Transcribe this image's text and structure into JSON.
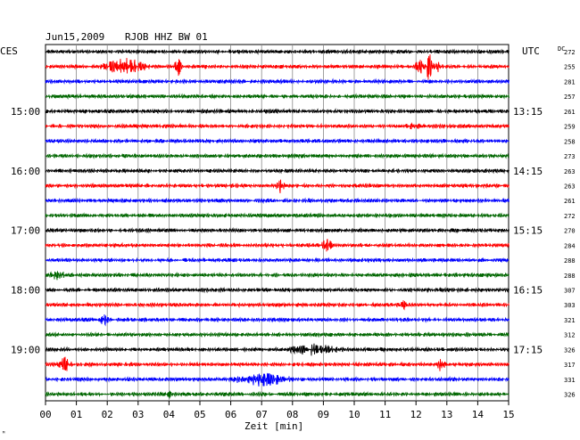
{
  "header": {
    "date": "Jun15,2009",
    "station": "RJOB HHZ BW 01",
    "left_tz": "CES",
    "right_tz": "UTC",
    "dc_label": "DC"
  },
  "footer": {
    "xlabel": "Zeit [min]",
    "corner_mark": "ᴹ"
  },
  "chart_data": {
    "type": "line",
    "title": "Jun15,2009   RJOB HHZ BW 01",
    "xlabel": "Zeit [min]",
    "xlim": [
      0,
      15
    ],
    "x_ticks": [
      "00",
      "01",
      "02",
      "03",
      "04",
      "05",
      "06",
      "07",
      "08",
      "09",
      "10",
      "11",
      "12",
      "13",
      "14",
      "15"
    ],
    "grid": true,
    "trace_colors": [
      "#000000",
      "#ff0000",
      "#0000ff",
      "#006600"
    ],
    "left_hour_labels": [
      {
        "row": 4,
        "label": "15:00"
      },
      {
        "row": 8,
        "label": "16:00"
      },
      {
        "row": 12,
        "label": "17:00"
      },
      {
        "row": 16,
        "label": "18:00"
      },
      {
        "row": 20,
        "label": "19:00"
      }
    ],
    "right_hour_labels": [
      {
        "row": 4,
        "label": "13:15"
      },
      {
        "row": 8,
        "label": "14:15"
      },
      {
        "row": 12,
        "label": "15:15"
      },
      {
        "row": 16,
        "label": "16:15"
      },
      {
        "row": 20,
        "label": "17:15"
      }
    ],
    "dc_values": [
      "272",
      "255",
      "281",
      "257",
      "261",
      "259",
      "258",
      "273",
      "263",
      "263",
      "261",
      "272",
      "270",
      "284",
      "288",
      "288",
      "307",
      "303",
      "321",
      "312",
      "326",
      "317",
      "331",
      "326"
    ],
    "events": [
      {
        "row": 1,
        "minute": 2.6,
        "amplitude": 9,
        "duration": 0.9
      },
      {
        "row": 1,
        "minute": 4.3,
        "amplitude": 11,
        "duration": 0.15
      },
      {
        "row": 1,
        "minute": 12.4,
        "amplitude": 14,
        "duration": 0.5
      },
      {
        "row": 5,
        "minute": 11.9,
        "amplitude": 3,
        "duration": 0.3
      },
      {
        "row": 9,
        "minute": 7.6,
        "amplitude": 7,
        "duration": 0.2
      },
      {
        "row": 13,
        "minute": 9.1,
        "amplitude": 6,
        "duration": 0.3
      },
      {
        "row": 15,
        "minute": 0.4,
        "amplitude": 5,
        "duration": 0.3
      },
      {
        "row": 17,
        "minute": 11.6,
        "amplitude": 4,
        "duration": 0.15
      },
      {
        "row": 18,
        "minute": 1.9,
        "amplitude": 8,
        "duration": 0.15
      },
      {
        "row": 20,
        "minute": 8.7,
        "amplitude": 6,
        "duration": 1.0
      },
      {
        "row": 21,
        "minute": 0.6,
        "amplitude": 8,
        "duration": 0.3
      },
      {
        "row": 21,
        "minute": 12.8,
        "amplitude": 9,
        "duration": 0.15
      },
      {
        "row": 22,
        "minute": 7.0,
        "amplitude": 7,
        "duration": 1.2
      },
      {
        "row": 23,
        "minute": 4.0,
        "amplitude": 4,
        "duration": 0.1
      }
    ]
  }
}
